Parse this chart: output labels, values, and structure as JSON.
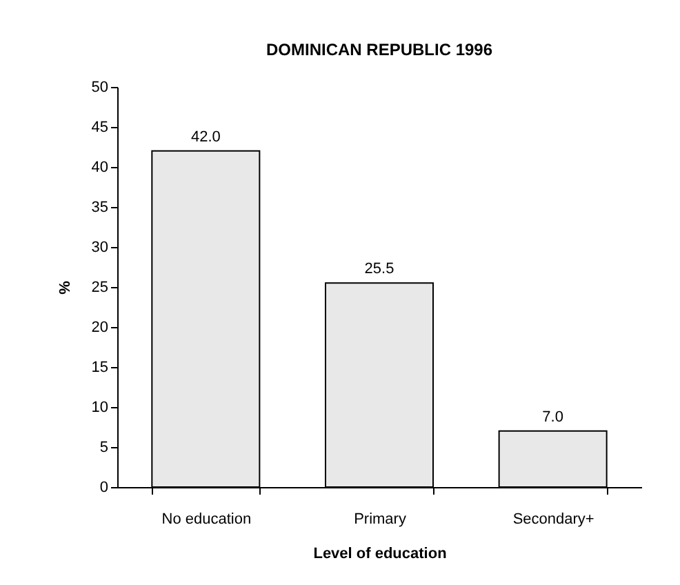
{
  "chart_data": {
    "type": "bar",
    "title": "DOMINICAN REPUBLIC 1996",
    "xlabel": "Level of education",
    "ylabel": "%",
    "categories": [
      "No education",
      "Primary",
      "Secondary+"
    ],
    "values": [
      42.0,
      25.5,
      7.0
    ],
    "value_labels": [
      "42.0",
      "25.5",
      "7.0"
    ],
    "color": "#e8e8e8",
    "ylim": [
      0,
      50
    ],
    "yticks": [
      0,
      5,
      10,
      15,
      20,
      25,
      30,
      35,
      40,
      45,
      50
    ],
    "grid": false
  }
}
